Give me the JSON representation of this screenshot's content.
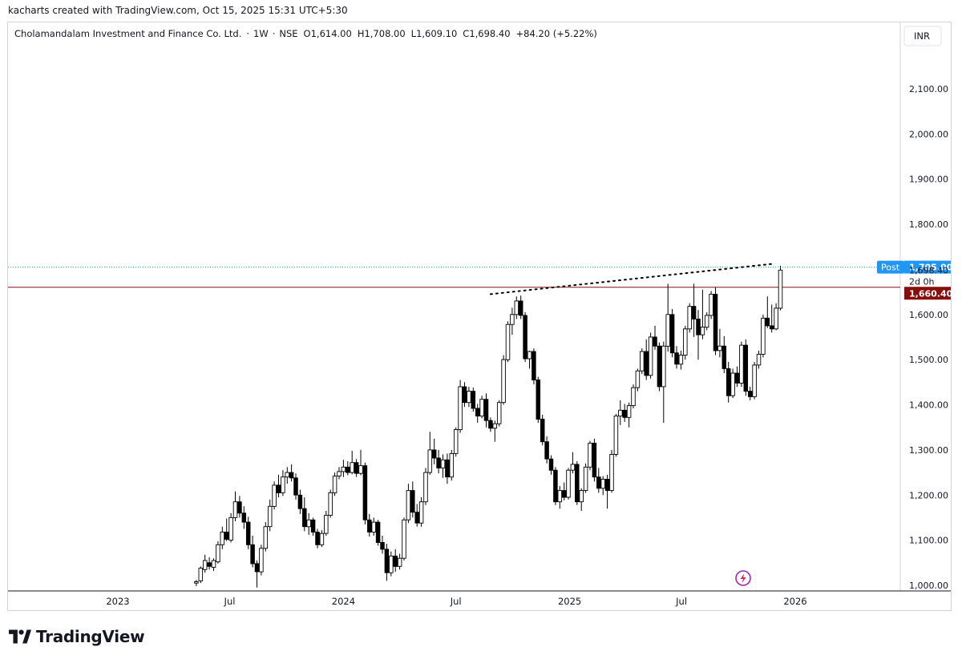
{
  "caption": "kacharts created with TradingView.com, Oct 15, 2025 15:31 UTC+5:30",
  "header": {
    "symbol": "Cholamandalam Investment and Finance Co. Ltd.",
    "sep": "·",
    "interval": "1W",
    "exchange": "NSE",
    "open": "O1,614.00",
    "high": "H1,708.00",
    "low": "L1,609.10",
    "close": "C1,698.40",
    "change": "+84.20 (+5.22%)"
  },
  "currency": "INR",
  "brand": "TradingView",
  "labels": {
    "post_tag": "Post",
    "post_price": "1,705.00",
    "last_price": "1,698.40",
    "countdown": "2d 0h",
    "hline_price": "1,660.40"
  },
  "colors": {
    "bull_fill": "#ffffff",
    "bear_fill": "#000000",
    "wick": "#000000",
    "hline": "#880e0e",
    "post": "#2196f3",
    "grid_text": "#131722"
  },
  "chart_data": {
    "type": "candlestick",
    "interval": "1W",
    "ylim": [
      1000,
      2200
    ],
    "yticks": [
      1000,
      1100,
      1200,
      1300,
      1400,
      1500,
      1600,
      1700,
      1800,
      1900,
      2000,
      2100
    ],
    "ytick_labels": [
      "1,000.00",
      "1,100.00",
      "1,200.00",
      "1,300.00",
      "1,400.00",
      "1,500.00",
      "1,600.00",
      "1,700.00",
      "1,800.00",
      "1,900.00",
      "2,000.00",
      "2,100.00"
    ],
    "xticks": [
      {
        "label": "2023",
        "date": "2023-01-01"
      },
      {
        "label": "Jul",
        "date": "2023-07-01"
      },
      {
        "label": "2024",
        "date": "2024-01-01"
      },
      {
        "label": "Jul",
        "date": "2024-07-01"
      },
      {
        "label": "2025",
        "date": "2025-01-01"
      },
      {
        "label": "Jul",
        "date": "2025-07-01"
      },
      {
        "label": "2026",
        "date": "2026-01-01"
      }
    ],
    "horizontal_line": 1660.4,
    "post_market_price": 1705.0,
    "trendline": [
      {
        "date": "2024-08-26",
        "price": 1645
      },
      {
        "date": "2025-11-24",
        "price": 1712
      }
    ],
    "candles": [
      {
        "date": "2023-05-08",
        "o": 1005,
        "h": 1012,
        "l": 998,
        "c": 1008
      },
      {
        "date": "2023-05-15",
        "o": 1010,
        "h": 1042,
        "l": 1005,
        "c": 1038
      },
      {
        "date": "2023-05-22",
        "o": 1035,
        "h": 1068,
        "l": 1028,
        "c": 1055
      },
      {
        "date": "2023-05-29",
        "o": 1050,
        "h": 1062,
        "l": 1035,
        "c": 1042
      },
      {
        "date": "2023-06-05",
        "o": 1040,
        "h": 1060,
        "l": 1032,
        "c": 1055
      },
      {
        "date": "2023-06-12",
        "o": 1052,
        "h": 1098,
        "l": 1048,
        "c": 1090
      },
      {
        "date": "2023-06-19",
        "o": 1090,
        "h": 1130,
        "l": 1080,
        "c": 1118
      },
      {
        "date": "2023-06-26",
        "o": 1118,
        "h": 1148,
        "l": 1098,
        "c": 1102
      },
      {
        "date": "2023-07-03",
        "o": 1100,
        "h": 1160,
        "l": 1095,
        "c": 1150
      },
      {
        "date": "2023-07-10",
        "o": 1150,
        "h": 1208,
        "l": 1142,
        "c": 1185
      },
      {
        "date": "2023-07-17",
        "o": 1185,
        "h": 1198,
        "l": 1150,
        "c": 1160
      },
      {
        "date": "2023-07-24",
        "o": 1160,
        "h": 1175,
        "l": 1125,
        "c": 1140
      },
      {
        "date": "2023-07-31",
        "o": 1140,
        "h": 1152,
        "l": 1080,
        "c": 1090
      },
      {
        "date": "2023-08-07",
        "o": 1090,
        "h": 1110,
        "l": 1040,
        "c": 1048
      },
      {
        "date": "2023-08-14",
        "o": 1048,
        "h": 1055,
        "l": 995,
        "c": 1030
      },
      {
        "date": "2023-08-21",
        "o": 1030,
        "h": 1090,
        "l": 1022,
        "c": 1082
      },
      {
        "date": "2023-08-28",
        "o": 1082,
        "h": 1140,
        "l": 1075,
        "c": 1130
      },
      {
        "date": "2023-09-04",
        "o": 1130,
        "h": 1190,
        "l": 1120,
        "c": 1175
      },
      {
        "date": "2023-09-11",
        "o": 1175,
        "h": 1230,
        "l": 1168,
        "c": 1222
      },
      {
        "date": "2023-09-18",
        "o": 1222,
        "h": 1245,
        "l": 1195,
        "c": 1205
      },
      {
        "date": "2023-09-25",
        "o": 1205,
        "h": 1255,
        "l": 1198,
        "c": 1240
      },
      {
        "date": "2023-10-02",
        "o": 1240,
        "h": 1262,
        "l": 1225,
        "c": 1250
      },
      {
        "date": "2023-10-09",
        "o": 1250,
        "h": 1268,
        "l": 1230,
        "c": 1238
      },
      {
        "date": "2023-10-16",
        "o": 1238,
        "h": 1248,
        "l": 1190,
        "c": 1200
      },
      {
        "date": "2023-10-23",
        "o": 1200,
        "h": 1212,
        "l": 1158,
        "c": 1170
      },
      {
        "date": "2023-10-30",
        "o": 1170,
        "h": 1195,
        "l": 1120,
        "c": 1130
      },
      {
        "date": "2023-11-06",
        "o": 1130,
        "h": 1160,
        "l": 1112,
        "c": 1145
      },
      {
        "date": "2023-11-13",
        "o": 1145,
        "h": 1150,
        "l": 1110,
        "c": 1118
      },
      {
        "date": "2023-11-20",
        "o": 1118,
        "h": 1125,
        "l": 1082,
        "c": 1090
      },
      {
        "date": "2023-11-27",
        "o": 1090,
        "h": 1122,
        "l": 1085,
        "c": 1115
      },
      {
        "date": "2023-12-04",
        "o": 1115,
        "h": 1165,
        "l": 1110,
        "c": 1155
      },
      {
        "date": "2023-12-11",
        "o": 1155,
        "h": 1212,
        "l": 1150,
        "c": 1205
      },
      {
        "date": "2023-12-18",
        "o": 1205,
        "h": 1250,
        "l": 1198,
        "c": 1242
      },
      {
        "date": "2023-12-25",
        "o": 1242,
        "h": 1262,
        "l": 1235,
        "c": 1252
      },
      {
        "date": "2024-01-01",
        "o": 1252,
        "h": 1278,
        "l": 1240,
        "c": 1262
      },
      {
        "date": "2024-01-08",
        "o": 1262,
        "h": 1275,
        "l": 1244,
        "c": 1250
      },
      {
        "date": "2024-01-15",
        "o": 1250,
        "h": 1298,
        "l": 1246,
        "c": 1272
      },
      {
        "date": "2024-01-22",
        "o": 1272,
        "h": 1280,
        "l": 1240,
        "c": 1248
      },
      {
        "date": "2024-01-29",
        "o": 1248,
        "h": 1300,
        "l": 1244,
        "c": 1265
      },
      {
        "date": "2024-02-05",
        "o": 1265,
        "h": 1272,
        "l": 1135,
        "c": 1145
      },
      {
        "date": "2024-02-12",
        "o": 1145,
        "h": 1158,
        "l": 1108,
        "c": 1118
      },
      {
        "date": "2024-02-19",
        "o": 1118,
        "h": 1150,
        "l": 1110,
        "c": 1140
      },
      {
        "date": "2024-02-26",
        "o": 1140,
        "h": 1145,
        "l": 1088,
        "c": 1095
      },
      {
        "date": "2024-03-04",
        "o": 1095,
        "h": 1110,
        "l": 1070,
        "c": 1080
      },
      {
        "date": "2024-03-11",
        "o": 1080,
        "h": 1092,
        "l": 1010,
        "c": 1028
      },
      {
        "date": "2024-03-18",
        "o": 1028,
        "h": 1075,
        "l": 1020,
        "c": 1065
      },
      {
        "date": "2024-03-25",
        "o": 1065,
        "h": 1080,
        "l": 1030,
        "c": 1042
      },
      {
        "date": "2024-04-01",
        "o": 1042,
        "h": 1070,
        "l": 1035,
        "c": 1060
      },
      {
        "date": "2024-04-08",
        "o": 1060,
        "h": 1150,
        "l": 1055,
        "c": 1145
      },
      {
        "date": "2024-04-15",
        "o": 1145,
        "h": 1225,
        "l": 1138,
        "c": 1210
      },
      {
        "date": "2024-04-22",
        "o": 1210,
        "h": 1230,
        "l": 1150,
        "c": 1162
      },
      {
        "date": "2024-04-29",
        "o": 1162,
        "h": 1180,
        "l": 1130,
        "c": 1138
      },
      {
        "date": "2024-05-06",
        "o": 1138,
        "h": 1195,
        "l": 1130,
        "c": 1185
      },
      {
        "date": "2024-05-13",
        "o": 1185,
        "h": 1260,
        "l": 1178,
        "c": 1250
      },
      {
        "date": "2024-05-20",
        "o": 1250,
        "h": 1340,
        "l": 1245,
        "c": 1300
      },
      {
        "date": "2024-05-27",
        "o": 1300,
        "h": 1325,
        "l": 1268,
        "c": 1282
      },
      {
        "date": "2024-06-03",
        "o": 1282,
        "h": 1300,
        "l": 1248,
        "c": 1260
      },
      {
        "date": "2024-06-10",
        "o": 1260,
        "h": 1290,
        "l": 1238,
        "c": 1278
      },
      {
        "date": "2024-06-17",
        "o": 1278,
        "h": 1292,
        "l": 1225,
        "c": 1240
      },
      {
        "date": "2024-06-24",
        "o": 1240,
        "h": 1300,
        "l": 1232,
        "c": 1292
      },
      {
        "date": "2024-07-01",
        "o": 1292,
        "h": 1350,
        "l": 1285,
        "c": 1345
      },
      {
        "date": "2024-07-08",
        "o": 1345,
        "h": 1455,
        "l": 1338,
        "c": 1440
      },
      {
        "date": "2024-07-15",
        "o": 1440,
        "h": 1450,
        "l": 1395,
        "c": 1405
      },
      {
        "date": "2024-07-22",
        "o": 1405,
        "h": 1440,
        "l": 1395,
        "c": 1430
      },
      {
        "date": "2024-07-29",
        "o": 1430,
        "h": 1438,
        "l": 1385,
        "c": 1392
      },
      {
        "date": "2024-08-05",
        "o": 1392,
        "h": 1402,
        "l": 1360,
        "c": 1375
      },
      {
        "date": "2024-08-12",
        "o": 1375,
        "h": 1420,
        "l": 1370,
        "c": 1412
      },
      {
        "date": "2024-08-19",
        "o": 1412,
        "h": 1425,
        "l": 1350,
        "c": 1365
      },
      {
        "date": "2024-08-26",
        "o": 1365,
        "h": 1372,
        "l": 1340,
        "c": 1348
      },
      {
        "date": "2024-09-02",
        "o": 1348,
        "h": 1365,
        "l": 1318,
        "c": 1358
      },
      {
        "date": "2024-09-09",
        "o": 1358,
        "h": 1410,
        "l": 1352,
        "c": 1405
      },
      {
        "date": "2024-09-16",
        "o": 1405,
        "h": 1510,
        "l": 1400,
        "c": 1500
      },
      {
        "date": "2024-09-23",
        "o": 1500,
        "h": 1585,
        "l": 1495,
        "c": 1578
      },
      {
        "date": "2024-09-30",
        "o": 1578,
        "h": 1615,
        "l": 1555,
        "c": 1600
      },
      {
        "date": "2024-10-07",
        "o": 1600,
        "h": 1640,
        "l": 1590,
        "c": 1630
      },
      {
        "date": "2024-10-14",
        "o": 1630,
        "h": 1642,
        "l": 1590,
        "c": 1598
      },
      {
        "date": "2024-10-21",
        "o": 1598,
        "h": 1605,
        "l": 1495,
        "c": 1502
      },
      {
        "date": "2024-10-28",
        "o": 1502,
        "h": 1520,
        "l": 1480,
        "c": 1518
      },
      {
        "date": "2024-11-04",
        "o": 1518,
        "h": 1525,
        "l": 1445,
        "c": 1455
      },
      {
        "date": "2024-11-11",
        "o": 1455,
        "h": 1462,
        "l": 1360,
        "c": 1368
      },
      {
        "date": "2024-11-18",
        "o": 1368,
        "h": 1378,
        "l": 1310,
        "c": 1318
      },
      {
        "date": "2024-11-25",
        "o": 1318,
        "h": 1330,
        "l": 1270,
        "c": 1280
      },
      {
        "date": "2024-12-02",
        "o": 1280,
        "h": 1288,
        "l": 1245,
        "c": 1255
      },
      {
        "date": "2024-12-09",
        "o": 1255,
        "h": 1262,
        "l": 1178,
        "c": 1185
      },
      {
        "date": "2024-12-16",
        "o": 1185,
        "h": 1220,
        "l": 1170,
        "c": 1210
      },
      {
        "date": "2024-12-23",
        "o": 1210,
        "h": 1228,
        "l": 1188,
        "c": 1195
      },
      {
        "date": "2024-12-30",
        "o": 1195,
        "h": 1260,
        "l": 1190,
        "c": 1255
      },
      {
        "date": "2025-01-06",
        "o": 1255,
        "h": 1295,
        "l": 1248,
        "c": 1268
      },
      {
        "date": "2025-01-13",
        "o": 1268,
        "h": 1275,
        "l": 1178,
        "c": 1185
      },
      {
        "date": "2025-01-20",
        "o": 1185,
        "h": 1215,
        "l": 1165,
        "c": 1210
      },
      {
        "date": "2025-01-27",
        "o": 1210,
        "h": 1270,
        "l": 1205,
        "c": 1262
      },
      {
        "date": "2025-02-03",
        "o": 1262,
        "h": 1320,
        "l": 1255,
        "c": 1315
      },
      {
        "date": "2025-02-10",
        "o": 1315,
        "h": 1325,
        "l": 1230,
        "c": 1240
      },
      {
        "date": "2025-02-17",
        "o": 1240,
        "h": 1260,
        "l": 1205,
        "c": 1215
      },
      {
        "date": "2025-02-24",
        "o": 1215,
        "h": 1242,
        "l": 1200,
        "c": 1235
      },
      {
        "date": "2025-03-03",
        "o": 1235,
        "h": 1245,
        "l": 1170,
        "c": 1210
      },
      {
        "date": "2025-03-10",
        "o": 1210,
        "h": 1300,
        "l": 1205,
        "c": 1290
      },
      {
        "date": "2025-03-17",
        "o": 1290,
        "h": 1380,
        "l": 1285,
        "c": 1375
      },
      {
        "date": "2025-03-24",
        "o": 1375,
        "h": 1410,
        "l": 1355,
        "c": 1388
      },
      {
        "date": "2025-03-31",
        "o": 1388,
        "h": 1402,
        "l": 1362,
        "c": 1372
      },
      {
        "date": "2025-04-07",
        "o": 1372,
        "h": 1405,
        "l": 1350,
        "c": 1398
      },
      {
        "date": "2025-04-14",
        "o": 1398,
        "h": 1445,
        "l": 1392,
        "c": 1438
      },
      {
        "date": "2025-04-21",
        "o": 1438,
        "h": 1480,
        "l": 1430,
        "c": 1475
      },
      {
        "date": "2025-04-28",
        "o": 1475,
        "h": 1525,
        "l": 1468,
        "c": 1518
      },
      {
        "date": "2025-05-05",
        "o": 1518,
        "h": 1545,
        "l": 1455,
        "c": 1465
      },
      {
        "date": "2025-05-12",
        "o": 1465,
        "h": 1560,
        "l": 1458,
        "c": 1550
      },
      {
        "date": "2025-05-19",
        "o": 1550,
        "h": 1575,
        "l": 1522,
        "c": 1530
      },
      {
        "date": "2025-05-26",
        "o": 1530,
        "h": 1538,
        "l": 1430,
        "c": 1440
      },
      {
        "date": "2025-06-02",
        "o": 1440,
        "h": 1540,
        "l": 1360,
        "c": 1530
      },
      {
        "date": "2025-06-09",
        "o": 1530,
        "h": 1668,
        "l": 1518,
        "c": 1600
      },
      {
        "date": "2025-06-16",
        "o": 1600,
        "h": 1612,
        "l": 1505,
        "c": 1515
      },
      {
        "date": "2025-06-23",
        "o": 1515,
        "h": 1530,
        "l": 1480,
        "c": 1490
      },
      {
        "date": "2025-06-30",
        "o": 1490,
        "h": 1520,
        "l": 1478,
        "c": 1510
      },
      {
        "date": "2025-07-07",
        "o": 1510,
        "h": 1575,
        "l": 1500,
        "c": 1568
      },
      {
        "date": "2025-07-14",
        "o": 1568,
        "h": 1625,
        "l": 1560,
        "c": 1618
      },
      {
        "date": "2025-07-21",
        "o": 1618,
        "h": 1668,
        "l": 1550,
        "c": 1590
      },
      {
        "date": "2025-07-28",
        "o": 1590,
        "h": 1610,
        "l": 1500,
        "c": 1555
      },
      {
        "date": "2025-08-04",
        "o": 1555,
        "h": 1655,
        "l": 1545,
        "c": 1572
      },
      {
        "date": "2025-08-11",
        "o": 1572,
        "h": 1605,
        "l": 1565,
        "c": 1598
      },
      {
        "date": "2025-08-18",
        "o": 1598,
        "h": 1652,
        "l": 1590,
        "c": 1645
      },
      {
        "date": "2025-08-25",
        "o": 1645,
        "h": 1660,
        "l": 1510,
        "c": 1520
      },
      {
        "date": "2025-09-01",
        "o": 1520,
        "h": 1568,
        "l": 1505,
        "c": 1530
      },
      {
        "date": "2025-09-08",
        "o": 1530,
        "h": 1552,
        "l": 1470,
        "c": 1480
      },
      {
        "date": "2025-09-15",
        "o": 1480,
        "h": 1495,
        "l": 1405,
        "c": 1420
      },
      {
        "date": "2025-09-22",
        "o": 1420,
        "h": 1480,
        "l": 1415,
        "c": 1470
      },
      {
        "date": "2025-09-29",
        "o": 1470,
        "h": 1485,
        "l": 1440,
        "c": 1448
      },
      {
        "date": "2025-10-06",
        "o": 1448,
        "h": 1540,
        "l": 1440,
        "c": 1532
      },
      {
        "date": "2025-10-13",
        "o": 1532,
        "h": 1545,
        "l": 1420,
        "c": 1430
      },
      {
        "date": "2025-10-20",
        "o": 1430,
        "h": 1440,
        "l": 1410,
        "c": 1418
      },
      {
        "date": "2025-10-27",
        "o": 1418,
        "h": 1495,
        "l": 1412,
        "c": 1488
      },
      {
        "date": "2025-11-03",
        "o": 1488,
        "h": 1520,
        "l": 1480,
        "c": 1512
      },
      {
        "date": "2025-11-10",
        "o": 1512,
        "h": 1600,
        "l": 1505,
        "c": 1592
      },
      {
        "date": "2025-11-17",
        "o": 1592,
        "h": 1640,
        "l": 1570,
        "c": 1575
      },
      {
        "date": "2025-11-24",
        "o": 1575,
        "h": 1622,
        "l": 1560,
        "c": 1568
      },
      {
        "date": "2025-12-01",
        "o": 1568,
        "h": 1625,
        "l": 1565,
        "c": 1614
      },
      {
        "date": "2025-12-08",
        "o": 1614,
        "h": 1708,
        "l": 1609.1,
        "c": 1698.4
      }
    ]
  }
}
